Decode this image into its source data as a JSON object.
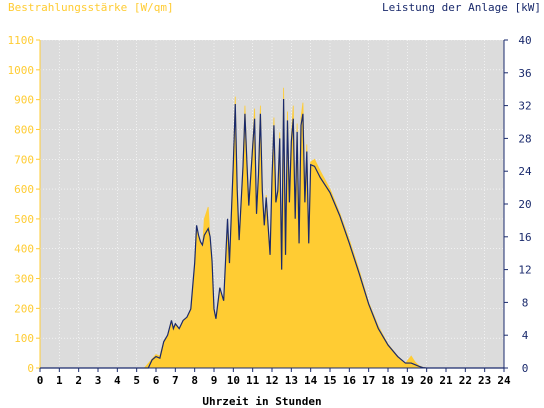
{
  "chart_data": {
    "type": "area",
    "left_axis_label": "Bestrahlungsstärke [W/qm]",
    "right_axis_label": "Leistung der Anlage [kW]",
    "xlabel": "Uhrzeit in Stunden",
    "xlim": [
      0,
      24
    ],
    "left_ylim": [
      0,
      1100
    ],
    "right_ylim": [
      0,
      40
    ],
    "x_ticks": [
      "0",
      "1",
      "2",
      "3",
      "4",
      "5",
      "6",
      "7",
      "8",
      "9",
      "10",
      "11",
      "12",
      "13",
      "14",
      "15",
      "16",
      "17",
      "18",
      "19",
      "20",
      "21",
      "22",
      "23",
      "24"
    ],
    "left_ticks": [
      "0",
      "100",
      "200",
      "300",
      "400",
      "500",
      "600",
      "700",
      "800",
      "900",
      "1000",
      "1100"
    ],
    "right_ticks": [
      "0",
      "4",
      "8",
      "12",
      "16",
      "20",
      "24",
      "28",
      "32",
      "36",
      "40"
    ],
    "grid": true,
    "colors": {
      "irradiance": "#ffcc33",
      "power": "#1a2a6c",
      "plot_background": "#dcdcdc",
      "left_axis": "#ffcc33",
      "right_axis": "#1a2a6c",
      "grid": "#ffffff"
    },
    "series": [
      {
        "name": "Bestrahlungsstärke [W/qm]",
        "axis": "left",
        "style": "area",
        "points": [
          [
            0,
            0
          ],
          [
            5.4,
            0
          ],
          [
            5.6,
            15
          ],
          [
            5.8,
            30
          ],
          [
            6.0,
            45
          ],
          [
            6.2,
            40
          ],
          [
            6.4,
            90
          ],
          [
            6.6,
            110
          ],
          [
            6.8,
            160
          ],
          [
            6.9,
            130
          ],
          [
            7.0,
            150
          ],
          [
            7.2,
            130
          ],
          [
            7.4,
            160
          ],
          [
            7.6,
            170
          ],
          [
            7.8,
            200
          ],
          [
            8.0,
            350
          ],
          [
            8.1,
            470
          ],
          [
            8.2,
            440
          ],
          [
            8.3,
            420
          ],
          [
            8.4,
            400
          ],
          [
            8.5,
            500
          ],
          [
            8.6,
            520
          ],
          [
            8.7,
            540
          ],
          [
            8.8,
            430
          ],
          [
            8.9,
            350
          ],
          [
            9.0,
            200
          ],
          [
            9.1,
            170
          ],
          [
            9.3,
            270
          ],
          [
            9.5,
            220
          ],
          [
            9.7,
            500
          ],
          [
            9.8,
            350
          ],
          [
            10.0,
            700
          ],
          [
            10.1,
            910
          ],
          [
            10.2,
            600
          ],
          [
            10.3,
            430
          ],
          [
            10.5,
            680
          ],
          [
            10.6,
            880
          ],
          [
            10.7,
            700
          ],
          [
            10.8,
            550
          ],
          [
            11.0,
            750
          ],
          [
            11.1,
            870
          ],
          [
            11.2,
            520
          ],
          [
            11.3,
            650
          ],
          [
            11.4,
            880
          ],
          [
            11.5,
            600
          ],
          [
            11.6,
            480
          ],
          [
            11.7,
            580
          ],
          [
            11.9,
            380
          ],
          [
            12.0,
            640
          ],
          [
            12.1,
            840
          ],
          [
            12.2,
            560
          ],
          [
            12.3,
            600
          ],
          [
            12.4,
            790
          ],
          [
            12.5,
            330
          ],
          [
            12.6,
            940
          ],
          [
            12.7,
            380
          ],
          [
            12.8,
            860
          ],
          [
            12.9,
            560
          ],
          [
            13.0,
            780
          ],
          [
            13.1,
            880
          ],
          [
            13.2,
            500
          ],
          [
            13.3,
            820
          ],
          [
            13.4,
            420
          ],
          [
            13.5,
            840
          ],
          [
            13.6,
            890
          ],
          [
            13.7,
            560
          ],
          [
            13.8,
            750
          ],
          [
            13.9,
            420
          ],
          [
            14.0,
            690
          ],
          [
            14.2,
            700
          ],
          [
            14.5,
            660
          ],
          [
            15.0,
            600
          ],
          [
            15.5,
            520
          ],
          [
            16.0,
            430
          ],
          [
            16.5,
            330
          ],
          [
            17.0,
            220
          ],
          [
            17.5,
            140
          ],
          [
            18.0,
            80
          ],
          [
            18.5,
            40
          ],
          [
            18.9,
            15
          ],
          [
            19.2,
            40
          ],
          [
            19.4,
            20
          ],
          [
            19.6,
            8
          ],
          [
            19.8,
            2
          ],
          [
            20.0,
            0
          ],
          [
            24,
            0
          ]
        ]
      },
      {
        "name": "Leistung der Anlage [kW]",
        "axis": "right",
        "style": "line",
        "points": [
          [
            0,
            0
          ],
          [
            5.6,
            0
          ],
          [
            5.8,
            1
          ],
          [
            6.0,
            1.4
          ],
          [
            6.2,
            1.2
          ],
          [
            6.4,
            3.2
          ],
          [
            6.6,
            4.0
          ],
          [
            6.8,
            5.8
          ],
          [
            6.9,
            4.8
          ],
          [
            7.0,
            5.4
          ],
          [
            7.2,
            4.8
          ],
          [
            7.4,
            5.8
          ],
          [
            7.6,
            6.2
          ],
          [
            7.8,
            7.2
          ],
          [
            8.0,
            12.8
          ],
          [
            8.1,
            17.4
          ],
          [
            8.2,
            16.2
          ],
          [
            8.3,
            15.4
          ],
          [
            8.4,
            15.0
          ],
          [
            8.5,
            16.2
          ],
          [
            8.6,
            16.6
          ],
          [
            8.7,
            17.0
          ],
          [
            8.8,
            16.0
          ],
          [
            8.9,
            13.0
          ],
          [
            9.0,
            7.2
          ],
          [
            9.1,
            6.0
          ],
          [
            9.3,
            9.8
          ],
          [
            9.5,
            8.2
          ],
          [
            9.7,
            18.2
          ],
          [
            9.8,
            12.8
          ],
          [
            10.0,
            25.0
          ],
          [
            10.1,
            32.2
          ],
          [
            10.2,
            21.8
          ],
          [
            10.3,
            15.6
          ],
          [
            10.5,
            24.6
          ],
          [
            10.6,
            31.0
          ],
          [
            10.7,
            25.2
          ],
          [
            10.8,
            19.8
          ],
          [
            11.0,
            27.0
          ],
          [
            11.1,
            30.4
          ],
          [
            11.2,
            18.8
          ],
          [
            11.3,
            23.6
          ],
          [
            11.4,
            31.0
          ],
          [
            11.5,
            21.6
          ],
          [
            11.6,
            17.4
          ],
          [
            11.7,
            20.8
          ],
          [
            11.9,
            13.8
          ],
          [
            12.0,
            23.2
          ],
          [
            12.1,
            29.6
          ],
          [
            12.2,
            20.2
          ],
          [
            12.3,
            21.6
          ],
          [
            12.4,
            28.0
          ],
          [
            12.5,
            12.0
          ],
          [
            12.6,
            32.8
          ],
          [
            12.7,
            13.8
          ],
          [
            12.8,
            30.2
          ],
          [
            12.9,
            20.2
          ],
          [
            13.0,
            27.6
          ],
          [
            13.1,
            30.4
          ],
          [
            13.2,
            18.2
          ],
          [
            13.3,
            28.8
          ],
          [
            13.4,
            15.2
          ],
          [
            13.5,
            29.6
          ],
          [
            13.6,
            31.0
          ],
          [
            13.7,
            20.2
          ],
          [
            13.8,
            26.4
          ],
          [
            13.9,
            15.2
          ],
          [
            14.0,
            24.8
          ],
          [
            14.2,
            24.6
          ],
          [
            14.5,
            23.2
          ],
          [
            15.0,
            21.4
          ],
          [
            15.5,
            18.6
          ],
          [
            16.0,
            15.2
          ],
          [
            16.5,
            11.6
          ],
          [
            17.0,
            7.8
          ],
          [
            17.5,
            4.8
          ],
          [
            18.0,
            2.8
          ],
          [
            18.5,
            1.4
          ],
          [
            18.9,
            0.6
          ],
          [
            19.2,
            0.6
          ],
          [
            19.4,
            0.4
          ],
          [
            19.6,
            0.2
          ],
          [
            19.8,
            0.05
          ],
          [
            20.0,
            0
          ],
          [
            24,
            0
          ]
        ]
      }
    ]
  }
}
